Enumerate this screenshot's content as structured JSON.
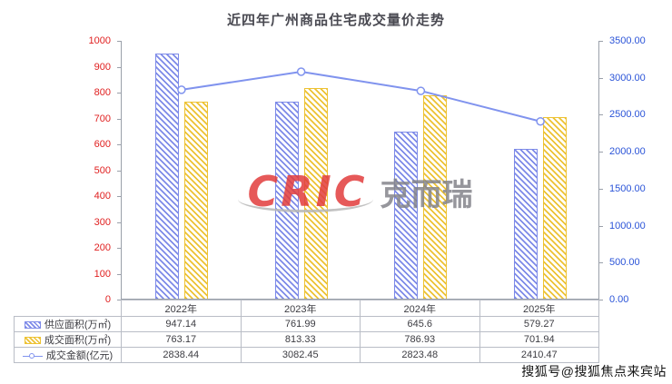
{
  "title": "近四年广州商品住宅成交量价走势",
  "watermark": {
    "brand": "CRIC",
    "brand_cn": "克而瑞"
  },
  "footer": {
    "credit": "搜狐号@搜狐焦点来宾站"
  },
  "chart_data": {
    "type": "bar",
    "subtype": "grouped bars with overlay line, dual y-axes, data table as x-labels",
    "categories": [
      "2022年",
      "2023年",
      "2024年",
      "2025年"
    ],
    "series": [
      {
        "name": "供应面积(万㎡)",
        "type": "bar",
        "axis": "left",
        "color": "#7d8ae8",
        "values": [
          947.14,
          761.99,
          645.6,
          579.27
        ]
      },
      {
        "name": "成交面积(万㎡)",
        "type": "bar",
        "axis": "left",
        "color": "#edc233",
        "values": [
          763.17,
          813.33,
          786.93,
          701.94
        ]
      },
      {
        "name": "成交金额(亿元)",
        "type": "line",
        "axis": "right",
        "color": "#8093ee",
        "values": [
          2838.44,
          3082.45,
          2823.48,
          2410.47
        ]
      }
    ],
    "left_axis": {
      "min": 0,
      "max": 1000,
      "step": 100,
      "color": "#e02020"
    },
    "right_axis": {
      "min": 0,
      "max": 3500,
      "step": 500,
      "decimals": 2,
      "color": "#2b54d8"
    },
    "grid": false,
    "legend_position": "table rows bottom-left"
  }
}
